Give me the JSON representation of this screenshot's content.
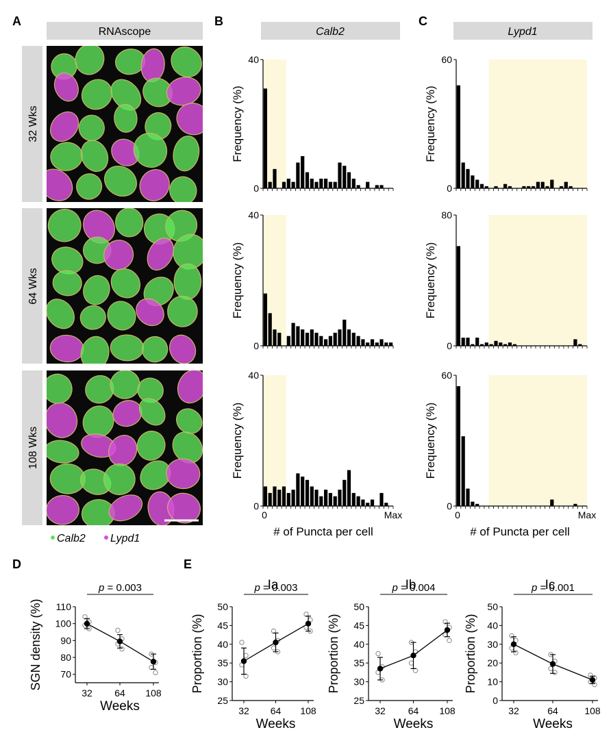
{
  "panel_letters": [
    "A",
    "B",
    "C",
    "D",
    "E"
  ],
  "panel_a": {
    "header": "RNAscope",
    "rows": [
      "32 Wks",
      "64 Wks",
      "108 Wks"
    ],
    "legend": [
      "Calb2",
      "Lypd1"
    ],
    "colors": {
      "calb2": "#5fe35a",
      "lypd1": "#d64fd8",
      "outline": "#c9b36a",
      "background": "#0a0a0a"
    }
  },
  "panel_b": {
    "header": "Calb2"
  },
  "panel_c": {
    "header": "Lypd1"
  },
  "hist_common": {
    "ylabel": "Frequency (%)",
    "xlabel": "# of Puncta per cell",
    "x_start": "0",
    "x_end": "Max",
    "shade_color": "#fdf7dc",
    "bar_color": "#000000"
  },
  "chart_data": [
    {
      "type": "bar",
      "panel": "B",
      "row": "32 Wks",
      "ylim": [
        0,
        40
      ],
      "yticks": [
        "0",
        "40"
      ],
      "n_bins": 28,
      "shade_bins": [
        0,
        5
      ],
      "values": [
        31,
        2,
        6,
        0,
        2,
        3,
        2,
        8,
        10,
        5,
        3,
        2,
        3,
        3,
        2,
        2,
        8,
        7,
        5,
        3,
        1,
        0,
        2,
        0,
        1,
        1,
        0,
        0
      ]
    },
    {
      "type": "bar",
      "panel": "B",
      "row": "64 Wks",
      "ylim": [
        0,
        40
      ],
      "yticks": [
        "0",
        "40"
      ],
      "n_bins": 28,
      "shade_bins": [
        0,
        5
      ],
      "values": [
        16,
        10,
        5,
        4,
        0,
        3,
        7,
        6,
        5,
        4,
        5,
        4,
        3,
        2,
        3,
        4,
        5,
        8,
        5,
        4,
        3,
        2,
        1,
        2,
        1,
        2,
        1,
        1
      ]
    },
    {
      "type": "bar",
      "panel": "B",
      "row": "108 Wks",
      "ylim": [
        0,
        40
      ],
      "yticks": [
        "0",
        "40"
      ],
      "n_bins": 28,
      "shade_bins": [
        0,
        5
      ],
      "values": [
        6,
        4,
        6,
        5,
        6,
        4,
        5,
        10,
        9,
        8,
        6,
        5,
        3,
        5,
        4,
        3,
        5,
        8,
        11,
        4,
        3,
        2,
        1,
        2,
        0,
        4,
        1,
        0
      ]
    },
    {
      "type": "bar",
      "panel": "C",
      "row": "32 Wks",
      "ylim": [
        0,
        60
      ],
      "yticks": [
        "0",
        "60"
      ],
      "n_bins": 28,
      "shade_bins": [
        7,
        28
      ],
      "values": [
        48,
        12,
        9,
        6,
        4,
        2,
        1,
        0,
        1,
        0,
        2,
        1,
        0,
        0,
        1,
        1,
        1,
        3,
        3,
        1,
        4,
        0,
        1,
        3,
        1,
        0,
        0,
        0
      ]
    },
    {
      "type": "bar",
      "panel": "C",
      "row": "64 Wks",
      "ylim": [
        0,
        80
      ],
      "yticks": [
        "0",
        "80"
      ],
      "n_bins": 28,
      "shade_bins": [
        7,
        28
      ],
      "values": [
        61,
        5,
        5,
        1,
        5,
        1,
        2,
        1,
        3,
        2,
        1,
        2,
        1,
        0,
        0,
        0,
        0,
        0,
        0,
        0,
        0,
        0,
        0,
        0,
        0,
        4,
        1,
        0
      ]
    },
    {
      "type": "bar",
      "panel": "C",
      "row": "108 Wks",
      "ylim": [
        0,
        60
      ],
      "yticks": [
        "0",
        "60"
      ],
      "n_bins": 28,
      "shade_bins": [
        7,
        28
      ],
      "values": [
        55,
        32,
        8,
        2,
        1,
        0,
        0,
        0,
        0,
        0,
        0,
        0,
        0,
        0,
        0,
        0,
        0,
        0,
        0,
        0,
        3,
        0,
        0,
        0,
        0,
        1,
        0,
        0
      ]
    },
    {
      "type": "scatter",
      "panel": "D",
      "ylabel": "SGN  density (%)",
      "xlabel": "Weeks",
      "categories": [
        "32",
        "64",
        "108"
      ],
      "ylim": [
        65,
        110
      ],
      "yticks": [
        70,
        80,
        90,
        100,
        110
      ],
      "means": [
        100,
        89.5,
        77.5
      ],
      "errors": [
        3,
        4,
        4.5
      ],
      "points": [
        [
          104,
          101,
          99,
          97
        ],
        [
          96,
          91,
          88,
          85
        ],
        [
          82,
          77,
          74,
          71
        ]
      ],
      "annotation": "= 0.003"
    },
    {
      "type": "scatter",
      "panel": "E",
      "title": "Ia",
      "ylabel": "Proportion (%)",
      "xlabel": "Weeks",
      "categories": [
        "32",
        "64",
        "108"
      ],
      "ylim": [
        25,
        50
      ],
      "yticks": [
        25,
        30,
        35,
        40,
        45,
        50
      ],
      "means": [
        35.5,
        40.5,
        45.5
      ],
      "errors": [
        3.5,
        2.5,
        2
      ],
      "points": [
        [
          40.5,
          37,
          34.5,
          31.5
        ],
        [
          43.5,
          41,
          39,
          38
        ],
        [
          48,
          46.5,
          44.5,
          43.5
        ]
      ],
      "annotation": "= 0.003"
    },
    {
      "type": "scatter",
      "panel": "E",
      "title": "Ib",
      "ylabel": "Proportion (%)",
      "xlabel": "Weeks",
      "categories": [
        "32",
        "64",
        "108"
      ],
      "ylim": [
        25,
        50
      ],
      "yticks": [
        25,
        30,
        35,
        40,
        45,
        50
      ],
      "means": [
        33.5,
        37,
        43.8
      ],
      "errors": [
        3,
        3.5,
        1.8
      ],
      "points": [
        [
          37.5,
          34,
          32.5,
          30.5
        ],
        [
          40.5,
          38,
          35,
          33
        ],
        [
          46,
          44.5,
          42.5,
          41
        ]
      ],
      "annotation": "= 0.004"
    },
    {
      "type": "scatter",
      "panel": "E",
      "title": "Ic",
      "ylabel": "Proportion (%)",
      "xlabel": "Weeks",
      "categories": [
        "32",
        "64",
        "108"
      ],
      "ylim": [
        0,
        50
      ],
      "yticks": [
        0,
        10,
        20,
        30,
        40,
        50
      ],
      "means": [
        30,
        19.5,
        11
      ],
      "errors": [
        4,
        5,
        2
      ],
      "points": [
        [
          34.5,
          32,
          28,
          25.5
        ],
        [
          24.5,
          21,
          17,
          15
        ],
        [
          13.5,
          12,
          10,
          8.5
        ]
      ],
      "annotation": "= 0.001"
    }
  ]
}
